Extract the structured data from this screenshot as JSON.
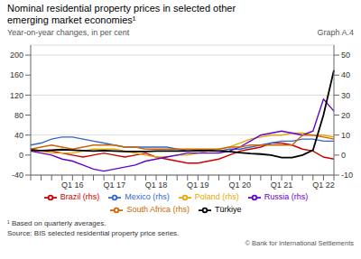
{
  "chart_data": {
    "type": "line",
    "title": "Nominal residential property prices in selected other emerging market economies¹",
    "subtitle": "Year-on-year changes, in per cent",
    "annotations": [
      "Graph A.4",
      "¹  Based on quarterly averages.",
      "Source: BIS selected residential property price series.",
      "© Bank for International Settlements"
    ],
    "categories": [
      null,
      null,
      null,
      null,
      "Q1 16",
      null,
      null,
      null,
      "Q1 17",
      null,
      null,
      null,
      "Q1 18",
      null,
      null,
      null,
      "Q1 19",
      null,
      null,
      null,
      "Q1 20",
      null,
      null,
      null,
      "Q1 21",
      null,
      null,
      null,
      "Q1 22",
      null
    ],
    "series": [
      {
        "name": "Brazil (rhs)",
        "color": "#cc0000",
        "axis": "y2",
        "values": [
          3,
          2,
          2,
          1,
          0,
          -1,
          0,
          1,
          0,
          -1,
          0,
          1,
          -1,
          -2,
          -3,
          -4,
          -4,
          -3,
          -2,
          0,
          2,
          3,
          4,
          6,
          6,
          5,
          3,
          2,
          -1,
          -2
        ]
      },
      {
        "name": "Mexico (rhs)",
        "color": "#3366cc",
        "axis": "y2",
        "values": [
          5,
          6,
          8,
          9,
          9,
          8,
          7,
          6,
          5,
          4,
          4,
          4,
          4,
          4,
          3,
          2,
          2,
          2,
          2,
          3,
          3,
          4,
          5,
          6,
          7,
          7,
          8,
          8,
          7,
          7
        ]
      },
      {
        "name": "Poland (rhs)",
        "color": "#e6a800",
        "axis": "y2",
        "values": [
          2,
          2,
          1,
          1,
          1,
          2,
          3,
          3,
          3,
          2,
          1,
          0,
          -1,
          -1,
          0,
          0,
          1,
          2,
          3,
          4,
          6,
          8,
          9,
          10,
          10,
          11,
          11,
          10,
          10,
          9
        ]
      },
      {
        "name": "Russia (rhs)",
        "color": "#6600cc",
        "axis": "y2",
        "values": [
          2,
          1,
          0,
          -2,
          -3,
          -5,
          -7,
          -8,
          -7,
          -6,
          -5,
          -3,
          -2,
          -1,
          0,
          1,
          1,
          1,
          1,
          2,
          4,
          7,
          10,
          11,
          12,
          11,
          10,
          12,
          28,
          22
        ]
      },
      {
        "name": "South Africa (rhs)",
        "color": "#cc6600",
        "axis": "y2",
        "values": [
          3,
          4,
          5,
          4,
          3,
          4,
          5,
          5,
          5,
          4,
          4,
          3,
          3,
          3,
          3,
          3,
          3,
          3,
          3,
          4,
          4,
          5,
          5,
          5,
          5,
          5,
          10,
          10,
          9,
          8
        ]
      },
      {
        "name": "Türkiye",
        "color": "#000000",
        "values": [
          10,
          9,
          10,
          11,
          10,
          9,
          8,
          9,
          8,
          7,
          7,
          7,
          8,
          8,
          8,
          8,
          9,
          9,
          8,
          7,
          5,
          3,
          2,
          0,
          -5,
          -5,
          0,
          10,
          80,
          170
        ]
      }
    ],
    "ylim": [
      -40,
      220
    ],
    "yticks": [
      -40,
      0,
      40,
      80,
      120,
      160,
      200
    ],
    "y2lim": [
      -10,
      55
    ],
    "y2ticks": [
      -10,
      0,
      10,
      20,
      30,
      40,
      50
    ],
    "grid": true,
    "legend": "bottom"
  }
}
